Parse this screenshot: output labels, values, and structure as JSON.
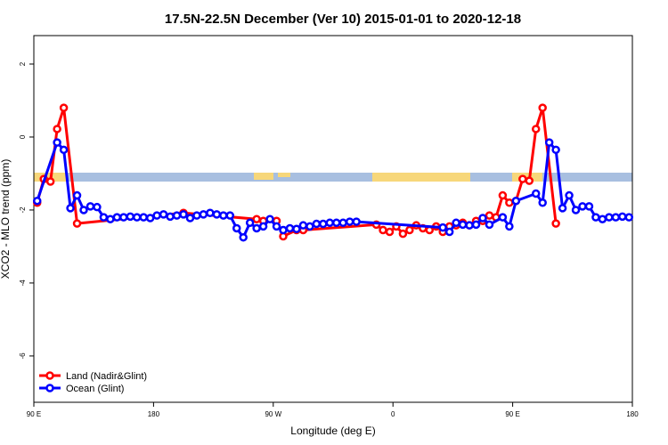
{
  "chart_data": {
    "type": "line",
    "title": "17.5N-22.5N December (Ver 10)   2015-01-01 to 2020-12-18",
    "x_label": "Longitude (deg E)",
    "y_label": "XCO2 - MLO trend (ppm)",
    "xlim": [
      90,
      540
    ],
    "ylim": [
      -7.27,
      2.78
    ],
    "xticks": [
      {
        "value": 90,
        "label": "90 E"
      },
      {
        "value": 180,
        "label": "180"
      },
      {
        "value": 270,
        "label": "90 W"
      },
      {
        "value": 360,
        "label": "0"
      },
      {
        "value": 450,
        "label": "90 E"
      },
      {
        "value": 540,
        "label": "180"
      }
    ],
    "yticks": [
      2,
      0,
      -2,
      -4,
      -6
    ],
    "legend": "bottom-left",
    "series": [
      {
        "name": "Land (Nadir&Glint)",
        "color": "#ff0000",
        "x": [
          92.5,
          97.5,
          102.5,
          107.5,
          112.5,
          122.5,
          202.5,
          257.5,
          262.5,
          272.5,
          277.5,
          287.5,
          292.5,
          347.5,
          352.5,
          357.5,
          362.5,
          367.5,
          372.5,
          377.5,
          382.5,
          387.5,
          392.5,
          397.5,
          402.5,
          407.5,
          412.5,
          417.5,
          422.5,
          427.5,
          432.5,
          437.5,
          442.5,
          447.5,
          452.5,
          457.5,
          462.5,
          467.5,
          472.5,
          482.5
        ],
        "values": [
          -1.8,
          -1.15,
          -1.22,
          0.22,
          0.8,
          -2.37,
          -2.08,
          -2.25,
          -2.3,
          -2.3,
          -2.72,
          -2.55,
          -2.55,
          -2.4,
          -2.55,
          -2.6,
          -2.45,
          -2.65,
          -2.55,
          -2.42,
          -2.5,
          -2.55,
          -2.45,
          -2.6,
          -2.45,
          -2.42,
          -2.35,
          -2.42,
          -2.3,
          -2.3,
          -2.15,
          -2.2,
          -1.6,
          -1.8,
          -1.75,
          -1.15,
          -1.2,
          0.22,
          0.8,
          -2.37
        ]
      },
      {
        "name": "Ocean (Glint)",
        "color": "#0000ff",
        "x": [
          92.5,
          107.5,
          112.5,
          117.5,
          122.5,
          127.5,
          132.5,
          137.5,
          142.5,
          147.5,
          152.5,
          157.5,
          162.5,
          167.5,
          172.5,
          177.5,
          182.5,
          187.5,
          192.5,
          197.5,
          202.5,
          207.5,
          212.5,
          217.5,
          222.5,
          227.5,
          232.5,
          237.5,
          242.5,
          247.5,
          252.5,
          257.5,
          262.5,
          267.5,
          272.5,
          277.5,
          282.5,
          287.5,
          292.5,
          297.5,
          302.5,
          307.5,
          312.5,
          317.5,
          322.5,
          327.5,
          332.5,
          397.5,
          402.5,
          407.5,
          412.5,
          417.5,
          422.5,
          427.5,
          432.5,
          442.5,
          447.5,
          452.5,
          467.5,
          472.5,
          477.5,
          482.5,
          487.5,
          492.5,
          497.5,
          502.5,
          507.5,
          512.5,
          517.5,
          522.5,
          527.5,
          532.5,
          537.5
        ],
        "values": [
          -1.75,
          -0.15,
          -0.35,
          -1.95,
          -1.6,
          -2.0,
          -1.9,
          -1.92,
          -2.2,
          -2.25,
          -2.2,
          -2.2,
          -2.18,
          -2.2,
          -2.2,
          -2.22,
          -2.15,
          -2.12,
          -2.18,
          -2.15,
          -2.12,
          -2.22,
          -2.15,
          -2.12,
          -2.08,
          -2.12,
          -2.15,
          -2.15,
          -2.5,
          -2.75,
          -2.35,
          -2.5,
          -2.45,
          -2.25,
          -2.45,
          -2.55,
          -2.5,
          -2.52,
          -2.42,
          -2.45,
          -2.38,
          -2.38,
          -2.35,
          -2.35,
          -2.35,
          -2.32,
          -2.32,
          -2.48,
          -2.6,
          -2.35,
          -2.4,
          -2.42,
          -2.4,
          -2.22,
          -2.4,
          -2.2,
          -2.45,
          -1.75,
          -1.55,
          -1.8,
          -0.15,
          -0.35,
          -1.95,
          -1.6,
          -2.0,
          -1.9,
          -1.9,
          -2.2,
          -2.25,
          -2.2,
          -2.2,
          -2.18,
          -2.2
        ]
      }
    ]
  }
}
